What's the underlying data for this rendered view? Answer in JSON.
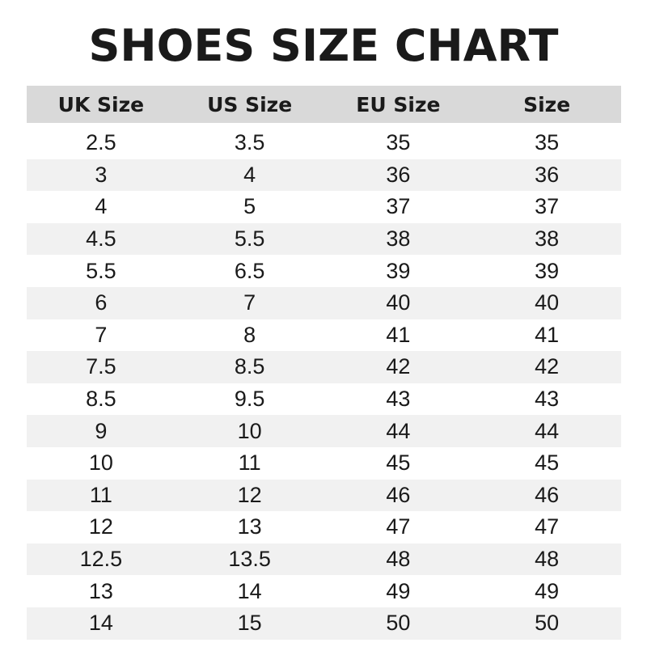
{
  "title": "SHOES SIZE CHART",
  "headers": [
    "UK Size",
    "US Size",
    "EU Size",
    "Size"
  ],
  "rows": [
    [
      "2.5",
      "3.5",
      "35",
      "35"
    ],
    [
      "3",
      "4",
      "36",
      "36"
    ],
    [
      "4",
      "5",
      "37",
      "37"
    ],
    [
      "4.5",
      "5.5",
      "38",
      "38"
    ],
    [
      "5.5",
      "6.5",
      "39",
      "39"
    ],
    [
      "6",
      "7",
      "40",
      "40"
    ],
    [
      "7",
      "8",
      "41",
      "41"
    ],
    [
      "7.5",
      "8.5",
      "42",
      "42"
    ],
    [
      "8.5",
      "9.5",
      "43",
      "43"
    ],
    [
      "9",
      "10",
      "44",
      "44"
    ],
    [
      "10",
      "11",
      "45",
      "45"
    ],
    [
      "11",
      "12",
      "46",
      "46"
    ],
    [
      "12",
      "13",
      "47",
      "47"
    ],
    [
      "12.5",
      "13.5",
      "48",
      "48"
    ],
    [
      "13",
      "14",
      "49",
      "49"
    ],
    [
      "14",
      "15",
      "50",
      "50"
    ]
  ],
  "colors": {
    "header_bg": "#d9d9d9",
    "stripe_bg": "#f1f1f1",
    "text": "#1a1a1a"
  }
}
